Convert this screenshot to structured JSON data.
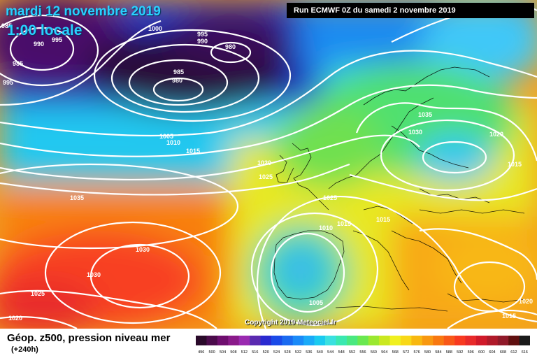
{
  "title": {
    "date": "mardi 12 novembre 2019",
    "time": "1:00 locale"
  },
  "run": "Run ECMWF 0Z du samedi 2 novembre 2019",
  "copyright": "Copyright 2019 Meteociel.fr",
  "footer": {
    "parameter": "Géop. z500, pression niveau mer",
    "step": "(+240h)"
  },
  "isobar_labels": [
    "985",
    "990",
    "995",
    "1000",
    "995",
    "990",
    "980",
    "985",
    "980",
    "985",
    "995",
    "1005",
    "1010",
    "1015",
    "1020",
    "1025",
    "1035",
    "1030",
    "1030",
    "1025",
    "1020",
    "1025",
    "1010",
    "1015",
    "1015",
    "1005",
    "1035",
    "1030",
    "1020",
    "1015",
    "1015",
    "1020"
  ],
  "color_scale": {
    "labels": [
      "496",
      "500",
      "504",
      "508",
      "512",
      "516",
      "520",
      "524",
      "528",
      "532",
      "536",
      "540",
      "544",
      "548",
      "552",
      "556",
      "560",
      "564",
      "568",
      "572",
      "576",
      "580",
      "584",
      "588",
      "592",
      "596",
      "600",
      "604",
      "608",
      "612",
      "616"
    ],
    "colors": [
      "#2a0a2a",
      "#4b0b4b",
      "#6e0e6e",
      "#8a1a8a",
      "#9a2ab0",
      "#5a2ab0",
      "#2a2ad0",
      "#1a4ae8",
      "#1a6af0",
      "#1a8af8",
      "#1aaaf8",
      "#1acaf0",
      "#3ae0e0",
      "#3ae8b0",
      "#4ae880",
      "#6ae850",
      "#9ae830",
      "#cae820",
      "#f0f020",
      "#f8d818",
      "#f8b810",
      "#f89810",
      "#f87810",
      "#f85818",
      "#f83a20",
      "#e82a2a",
      "#d01a2a",
      "#b01a2a",
      "#901a2a",
      "#601010",
      "#1a1a1a"
    ]
  }
}
